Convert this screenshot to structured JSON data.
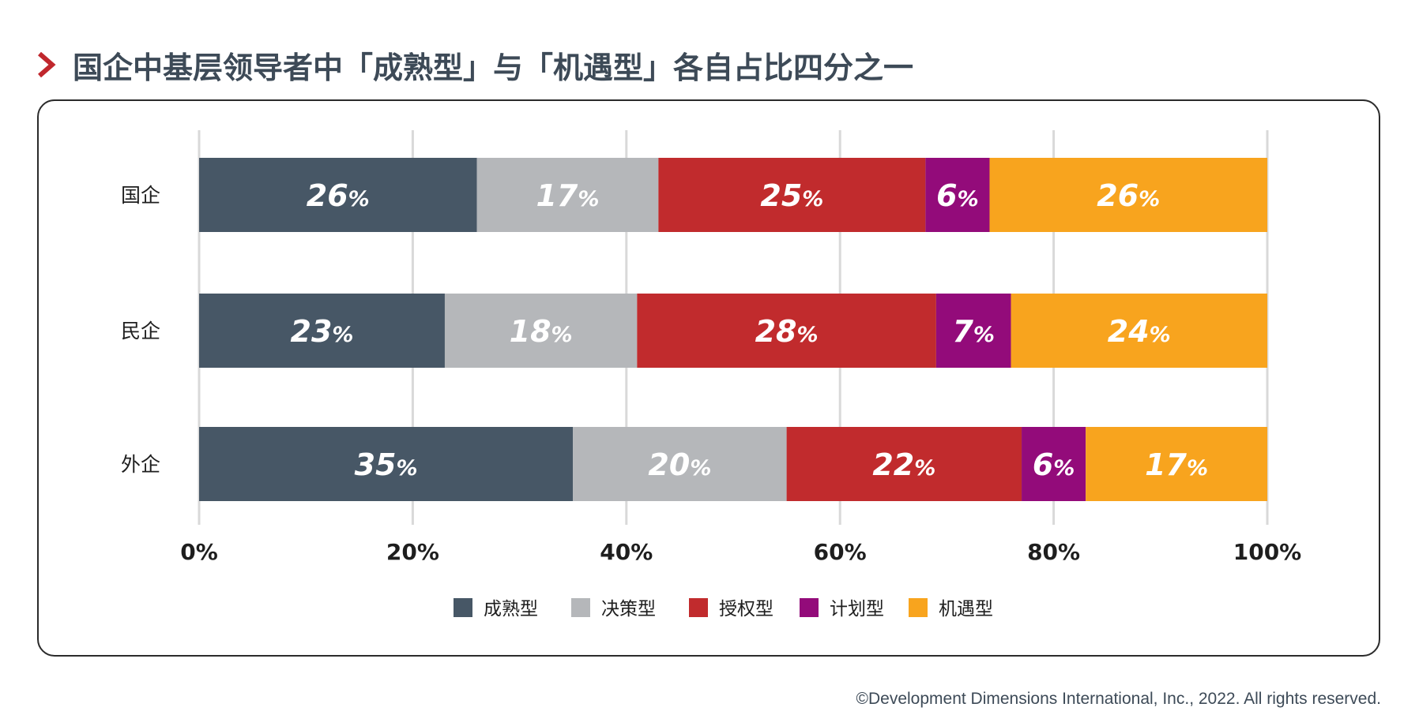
{
  "title": "国企中基层领导者中「成熟型」与「机遇型」各自占比四分之一",
  "footer": "©Development Dimensions International, Inc., 2022. All rights reserved.",
  "colors": {
    "accent_chevron": "#c0272d",
    "grid": "#d9d9d9",
    "series": [
      "#475766",
      "#b5b7ba",
      "#c12b2d",
      "#930b7a",
      "#f8a41e"
    ]
  },
  "chart_data": {
    "type": "bar",
    "orientation": "horizontal",
    "stacked": true,
    "categories": [
      "国企",
      "民企",
      "外企"
    ],
    "series": [
      {
        "name": "成熟型",
        "values": [
          26,
          23,
          35
        ]
      },
      {
        "name": "决策型",
        "values": [
          17,
          18,
          20
        ]
      },
      {
        "name": "授权型",
        "values": [
          25,
          28,
          22
        ]
      },
      {
        "name": "计划型",
        "values": [
          6,
          7,
          6
        ]
      },
      {
        "name": "机遇型",
        "values": [
          26,
          24,
          17
        ]
      }
    ],
    "xlim": [
      0,
      100
    ],
    "xticks": [
      "0%",
      "20%",
      "40%",
      "60%",
      "80%",
      "100%"
    ],
    "grid": true,
    "legend_position": "bottom",
    "value_suffix": "%"
  }
}
